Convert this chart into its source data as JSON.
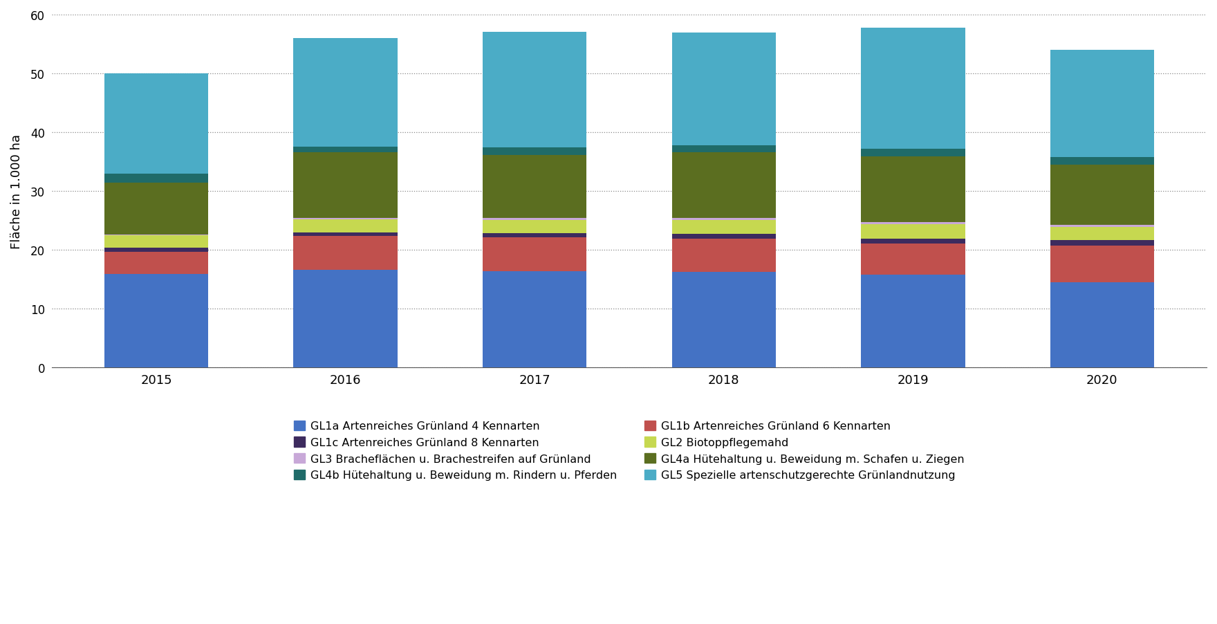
{
  "years": [
    "2015",
    "2016",
    "2017",
    "2018",
    "2019",
    "2020"
  ],
  "series": [
    {
      "label": "GL1a Artenreiches Grünland 4 Kennarten",
      "color": "#4472C4",
      "values": [
        15.8,
        16.5,
        16.3,
        16.2,
        15.7,
        14.4
      ]
    },
    {
      "label": "GL1b Artenreiches Grünland 6 Kennarten",
      "color": "#C0504D",
      "values": [
        3.8,
        5.8,
        5.8,
        5.6,
        5.3,
        6.3
      ]
    },
    {
      "label": "GL1c Artenreiches Grünland 8 Kennarten",
      "color": "#3D2B5E",
      "values": [
        0.7,
        0.65,
        0.65,
        0.9,
        0.9,
        0.9
      ]
    },
    {
      "label": "GL2 Biotoppflegemahd",
      "color": "#C6D850",
      "values": [
        2.1,
        2.2,
        2.3,
        2.3,
        2.4,
        2.3
      ]
    },
    {
      "label": "GL3 Bracheflächen u. Brachestreifen auf Grünland",
      "color": "#C8A8D8",
      "values": [
        0.2,
        0.2,
        0.3,
        0.4,
        0.35,
        0.3
      ]
    },
    {
      "label": "GL4a Hütehaltung u. Beweidung m. Schafen u. Ziegen",
      "color": "#5B6E20",
      "values": [
        8.8,
        11.2,
        10.7,
        11.2,
        11.2,
        10.2
      ]
    },
    {
      "label": "GL4b Hütehaltung u. Beweidung m. Rindern u. Pferden",
      "color": "#1F6B69",
      "values": [
        1.5,
        1.0,
        1.3,
        1.2,
        1.3,
        1.3
      ]
    },
    {
      "label": "GL5 Spezielle artenschutzgerechte Grünlandnutzung",
      "color": "#4BACC6",
      "values": [
        17.1,
        18.45,
        19.65,
        19.15,
        20.6,
        18.3
      ]
    }
  ],
  "ylabel": "Fläche in 1.000 ha",
  "ylim": [
    0,
    60
  ],
  "yticks": [
    0,
    10,
    20,
    30,
    40,
    50,
    60
  ],
  "background_color": "#ffffff",
  "bar_width": 0.55,
  "grid_color": "#888888",
  "legend_order": [
    0,
    2,
    4,
    6,
    1,
    3,
    5,
    7
  ],
  "legend_ncol": 2
}
